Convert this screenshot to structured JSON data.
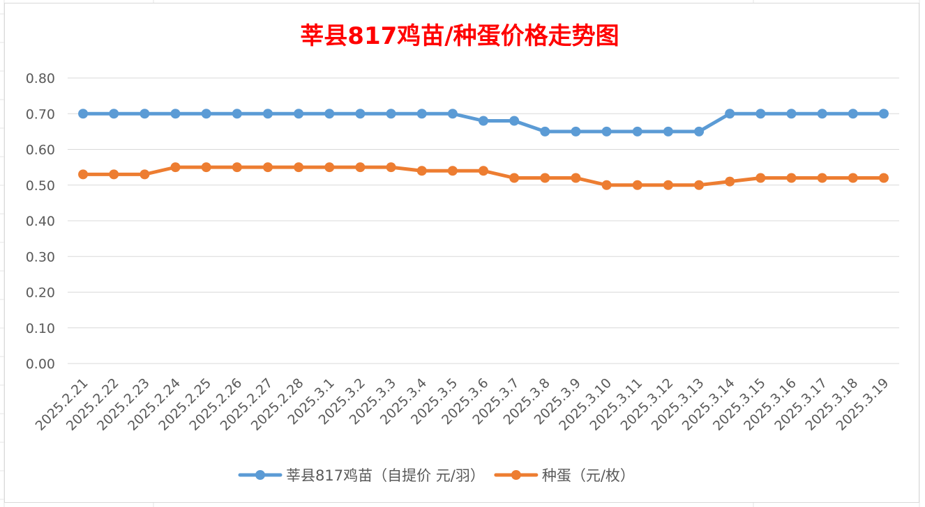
{
  "chart_data": {
    "type": "line",
    "title": "莘县817鸡苗/种蛋价格走势图",
    "title_color": "#ff0000",
    "xlabel": "",
    "ylabel": "",
    "ylim": [
      0,
      0.8
    ],
    "yticks": [
      "0.00",
      "0.10",
      "0.20",
      "0.30",
      "0.40",
      "0.50",
      "0.60",
      "0.70",
      "0.80"
    ],
    "grid": true,
    "legend_position": "bottom",
    "categories": [
      "2025.2.21",
      "2025.2.22",
      "2025.2.23",
      "2025.2.24",
      "2025.2.25",
      "2025.2.26",
      "2025.2.27",
      "2025.2.28",
      "2025.3.1",
      "2025.3.2",
      "2025.3.3",
      "2025.3.4",
      "2025.3.5",
      "2025.3.6",
      "2025.3.7",
      "2025.3.8",
      "2025.3.9",
      "2025.3.10",
      "2025.3.11",
      "2025.3.12",
      "2025.3.13",
      "2025.3.14",
      "2025.3.15",
      "2025.3.16",
      "2025.3.17",
      "2025.3.18",
      "2025.3.19"
    ],
    "series": [
      {
        "name": "莘县817鸡苗（自提价 元/羽）",
        "color": "#5b9bd5",
        "values": [
          0.7,
          0.7,
          0.7,
          0.7,
          0.7,
          0.7,
          0.7,
          0.7,
          0.7,
          0.7,
          0.7,
          0.7,
          0.7,
          0.68,
          0.68,
          0.65,
          0.65,
          0.65,
          0.65,
          0.65,
          0.65,
          0.7,
          0.7,
          0.7,
          0.7,
          0.7,
          0.7
        ]
      },
      {
        "name": "种蛋（元/枚）",
        "color": "#ed7d31",
        "values": [
          0.53,
          0.53,
          0.53,
          0.55,
          0.55,
          0.55,
          0.55,
          0.55,
          0.55,
          0.55,
          0.55,
          0.54,
          0.54,
          0.54,
          0.52,
          0.52,
          0.52,
          0.5,
          0.5,
          0.5,
          0.5,
          0.51,
          0.52,
          0.52,
          0.52,
          0.52,
          0.52
        ]
      }
    ]
  }
}
